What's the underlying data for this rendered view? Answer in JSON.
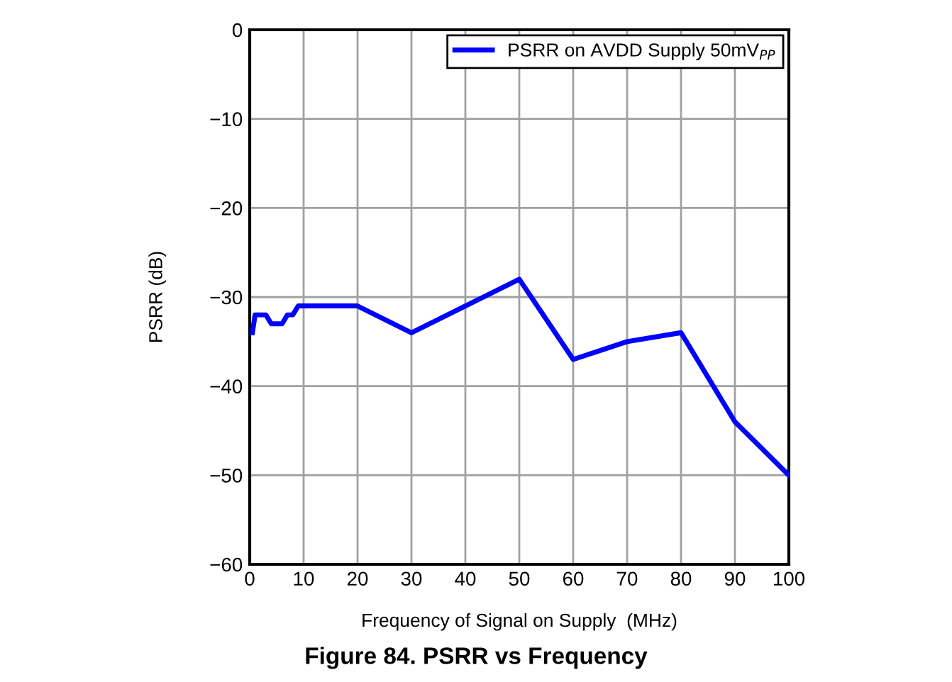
{
  "chart_data": {
    "type": "line",
    "title": "Figure 84. PSRR vs Frequency",
    "xlabel": "Frequency of Signal on Supply  (MHz)",
    "ylabel": "PSRR (dB)",
    "x": [
      0.5,
      1,
      3,
      4,
      6,
      7,
      8,
      9,
      20,
      30,
      50,
      60,
      70,
      80,
      90,
      100
    ],
    "series": [
      {
        "name": "PSRR on AVDD Supply 50mV$_{PP}$",
        "color": "#0000ff",
        "values": [
          -34,
          -32,
          -32,
          -33,
          -33,
          -32,
          -32,
          -31,
          -31,
          -34,
          -28,
          -37,
          -35,
          -34,
          -44,
          -50
        ]
      }
    ],
    "xlim": [
      0,
      100
    ],
    "xticks": [
      0,
      10,
      20,
      30,
      40,
      50,
      60,
      70,
      80,
      90,
      100
    ],
    "ylim": [
      -60,
      0
    ],
    "yticks": [
      {
        "value": 0,
        "label": "0"
      },
      {
        "value": -10,
        "label": "−10"
      },
      {
        "value": -20,
        "label": "−20"
      },
      {
        "value": -30,
        "label": "−30"
      },
      {
        "value": -40,
        "label": "−40"
      },
      {
        "value": -50,
        "label": "−50"
      },
      {
        "value": -60,
        "label": "−60"
      }
    ],
    "grid": true,
    "legend": "top right",
    "line_style": "solid",
    "marker": "none"
  }
}
